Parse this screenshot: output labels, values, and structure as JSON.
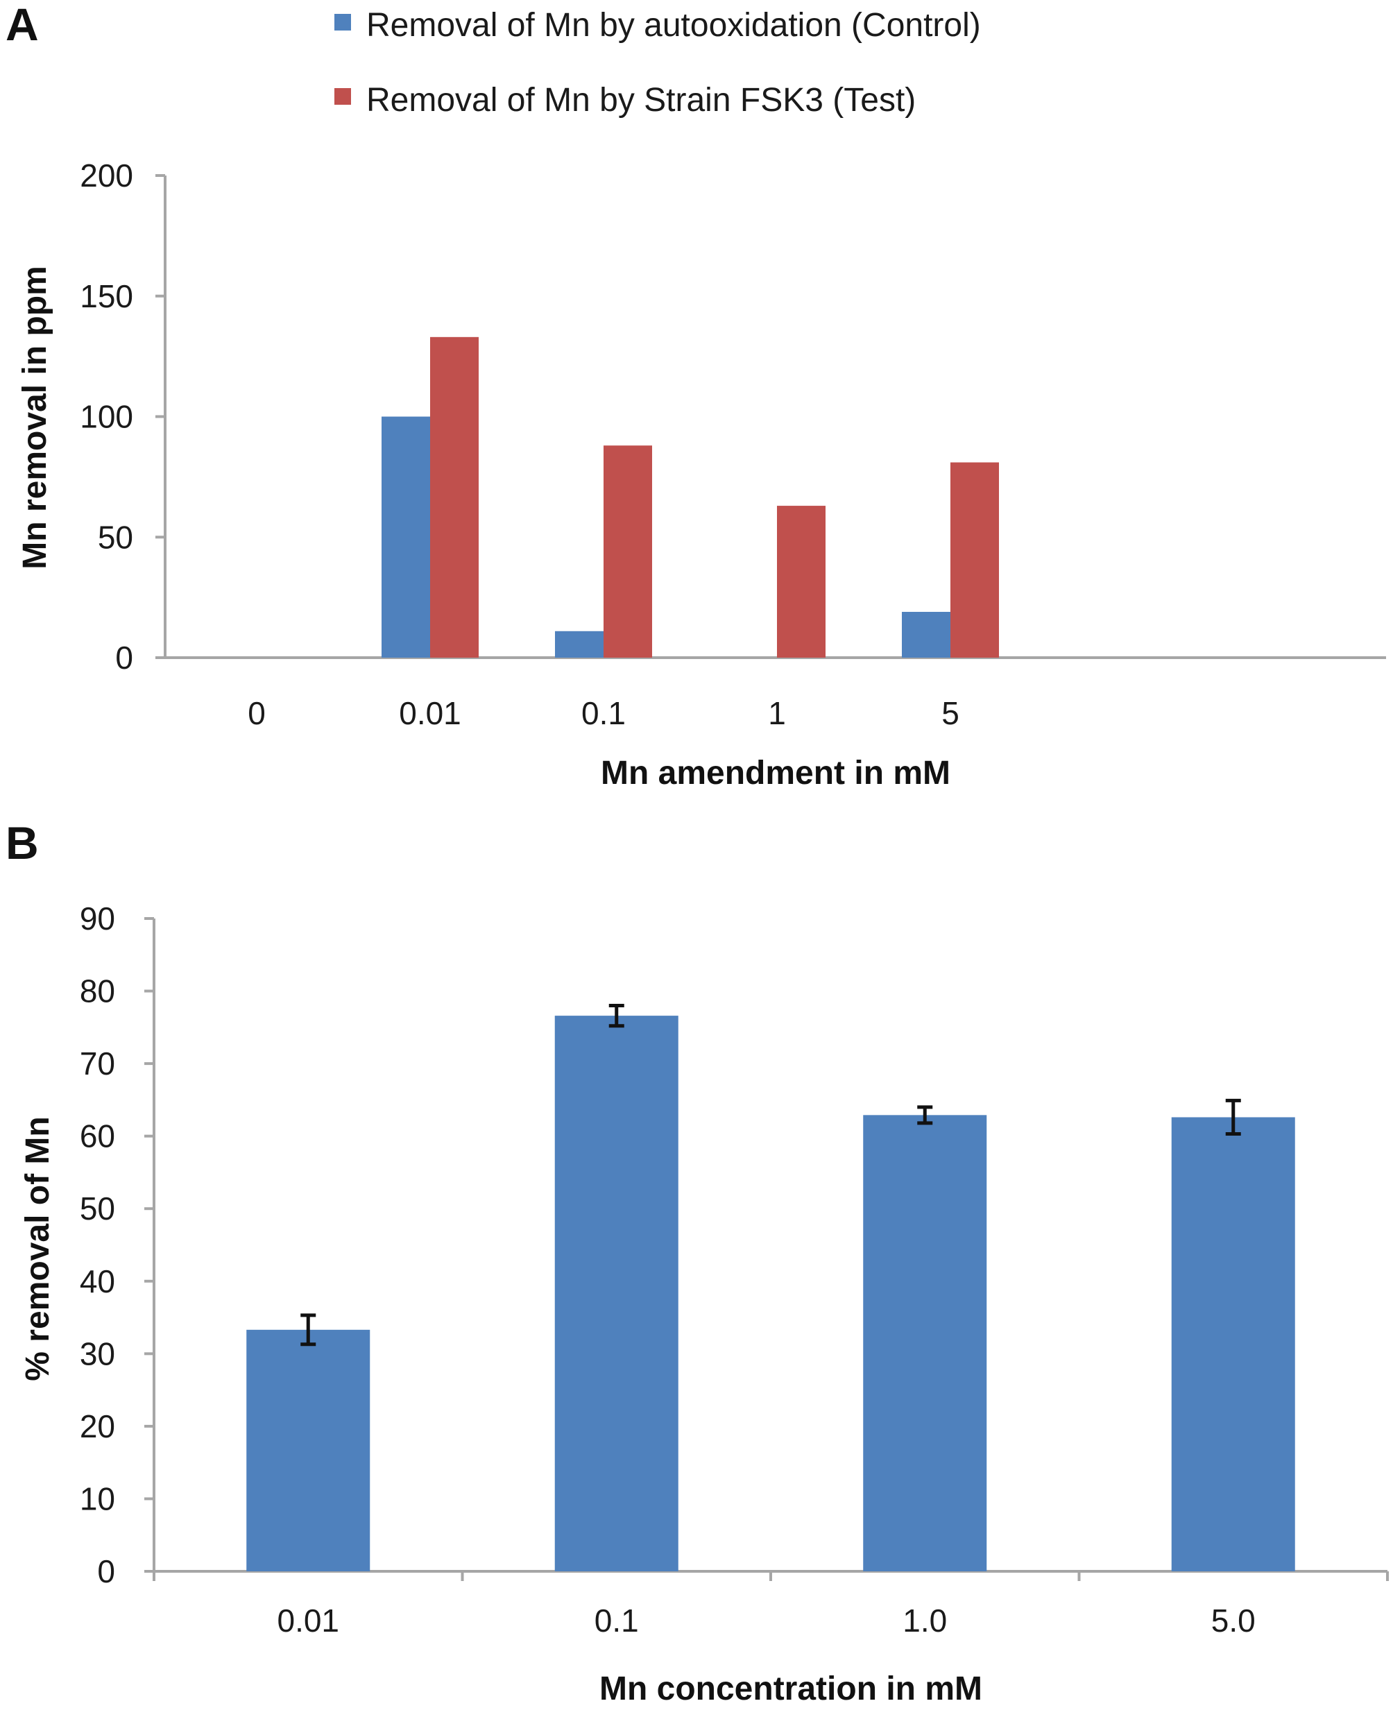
{
  "chart_data": [
    {
      "panel": "A",
      "type": "bar",
      "categories": [
        "0",
        "0.01",
        "0.1",
        "1",
        "5"
      ],
      "series": [
        {
          "name": "Removal of Mn by autooxidation (Control)",
          "color": "#4f81bd",
          "values": [
            0,
            100,
            11,
            0,
            19
          ]
        },
        {
          "name": "Removal of Mn by Strain FSK3 (Test)",
          "color": "#c0504d",
          "values": [
            0,
            133,
            88,
            63,
            81
          ]
        }
      ],
      "xlabel": "Mn amendment in mM",
      "ylabel": "Mn removal in ppm",
      "ylim": [
        0,
        200
      ],
      "yticks": [
        "0",
        "50",
        "100",
        "150",
        "200"
      ],
      "legend": "top"
    },
    {
      "panel": "B",
      "type": "bar",
      "categories": [
        "0.01",
        "0.1",
        "1.0",
        "5.0"
      ],
      "series": [
        {
          "name": "% removal of Mn",
          "color": "#4f81bd",
          "values": [
            33.3,
            76.6,
            62.9,
            62.6
          ],
          "errors": [
            2.0,
            1.4,
            1.1,
            2.3
          ]
        }
      ],
      "xlabel": "Mn concentration  in mM",
      "ylabel": "% removal of Mn",
      "ylim": [
        0,
        90
      ],
      "yticks": [
        "0",
        "10",
        "20",
        "30",
        "40",
        "50",
        "60",
        "70",
        "80",
        "90"
      ]
    }
  ]
}
